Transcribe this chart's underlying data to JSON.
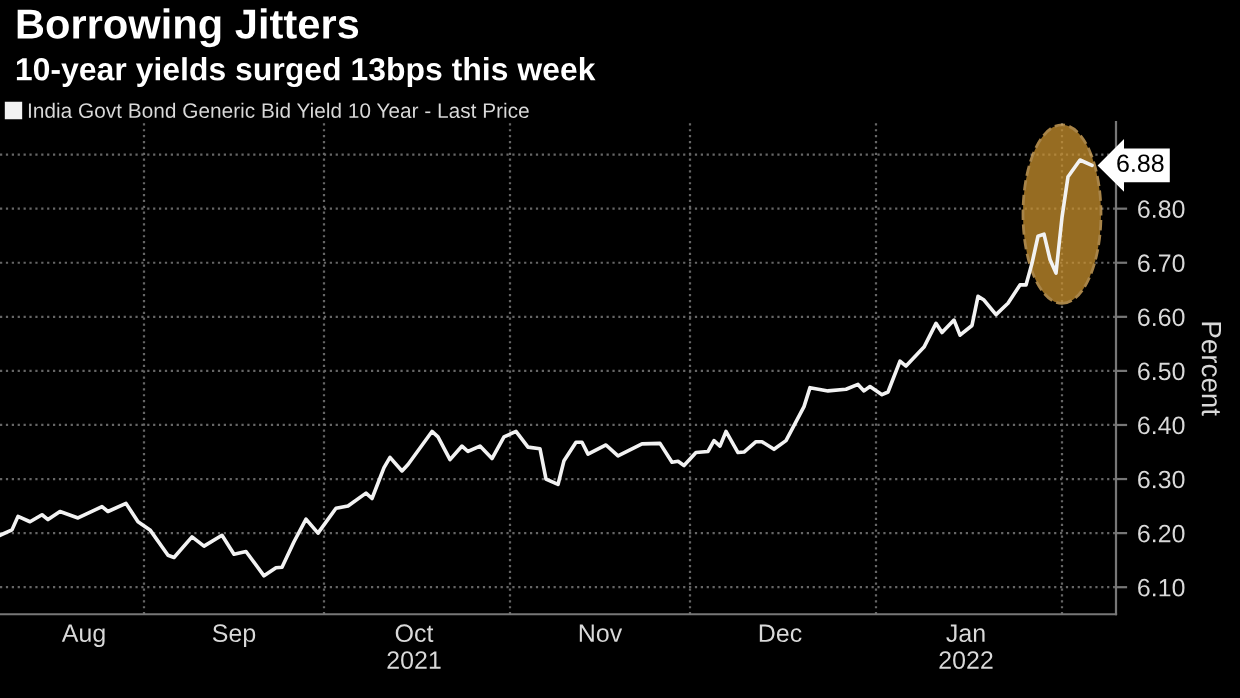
{
  "chart_data": {
    "type": "line",
    "title": "Borrowing Jitters",
    "subtitle": "10-year yields surged 13bps this week",
    "ylabel": "Percent",
    "legend": "top left",
    "grid": true,
    "marker": "none",
    "line_style": "solid",
    "x": [
      "2021-08-08",
      "2021-08-10",
      "2021-08-11",
      "2021-08-13",
      "2021-08-15",
      "2021-08-16",
      "2021-08-18",
      "2021-08-21",
      "2021-08-25",
      "2021-08-26",
      "2021-08-29",
      "2021-08-31",
      "2021-09-02",
      "2021-09-05",
      "2021-09-06",
      "2021-09-09",
      "2021-09-11",
      "2021-09-14",
      "2021-09-16",
      "2021-09-18",
      "2021-09-21",
      "2021-09-23",
      "2021-09-24",
      "2021-09-26",
      "2021-09-28",
      "2021-09-30",
      "2021-10-03",
      "2021-10-05",
      "2021-10-08",
      "2021-10-09",
      "2021-10-11",
      "2021-10-12",
      "2021-10-14",
      "2021-10-15",
      "2021-10-19",
      "2021-10-20",
      "2021-10-22",
      "2021-10-24",
      "2021-10-25",
      "2021-10-27",
      "2021-10-29",
      "2021-10-31",
      "2021-11-02",
      "2021-11-04",
      "2021-11-06",
      "2021-11-07",
      "2021-11-09",
      "2021-11-10",
      "2021-11-12",
      "2021-11-13",
      "2021-11-14",
      "2021-11-17",
      "2021-11-19",
      "2021-11-23",
      "2021-11-26",
      "2021-11-28",
      "2021-11-29",
      "2021-11-30",
      "2021-12-02",
      "2021-12-04",
      "2021-12-05",
      "2021-12-06",
      "2021-12-07",
      "2021-12-09",
      "2021-12-10",
      "2021-12-12",
      "2021-12-13",
      "2021-12-15",
      "2021-12-17",
      "2021-12-20",
      "2021-12-21",
      "2021-12-24",
      "2021-12-27",
      "2021-12-29",
      "2021-12-30",
      "2021-12-31",
      "2022-01-02",
      "2022-01-03",
      "2022-01-05",
      "2022-01-06",
      "2022-01-09",
      "2022-01-11",
      "2022-01-12",
      "2022-01-14",
      "2022-01-15",
      "2022-01-17",
      "2022-01-18",
      "2022-01-19",
      "2022-01-21",
      "2022-01-23",
      "2022-01-25",
      "2022-01-26",
      "2022-01-27",
      "2022-01-28",
      "2022-01-29",
      "2022-01-30",
      "2022-01-31",
      "2022-02-01",
      "2022-02-02",
      "2022-02-04",
      "2022-02-06"
    ],
    "series": [
      {
        "name": "India Govt Bond Generic Bid Yield 10 Year - Last Price",
        "color": "#f2f2f2",
        "values": [
          6.196,
          6.206,
          6.231,
          6.221,
          6.234,
          6.225,
          6.24,
          6.228,
          6.249,
          6.24,
          6.255,
          6.221,
          6.206,
          6.159,
          6.155,
          6.193,
          6.176,
          6.196,
          6.161,
          6.166,
          6.121,
          6.136,
          6.137,
          6.184,
          6.226,
          6.2,
          6.246,
          6.25,
          6.274,
          6.264,
          6.321,
          6.34,
          6.315,
          6.327,
          6.388,
          6.378,
          6.336,
          6.361,
          6.351,
          6.361,
          6.338,
          6.378,
          6.388,
          6.359,
          6.356,
          6.3,
          6.29,
          6.334,
          6.368,
          6.368,
          6.346,
          6.363,
          6.343,
          6.365,
          6.366,
          6.331,
          6.333,
          6.325,
          6.349,
          6.351,
          6.371,
          6.361,
          6.388,
          6.349,
          6.35,
          6.369,
          6.369,
          6.355,
          6.371,
          6.434,
          6.469,
          6.463,
          6.466,
          6.475,
          6.463,
          6.471,
          6.456,
          6.461,
          6.518,
          6.509,
          6.544,
          6.588,
          6.571,
          6.594,
          6.566,
          6.584,
          6.638,
          6.631,
          6.604,
          6.625,
          6.659,
          6.659,
          6.699,
          6.749,
          6.753,
          6.706,
          6.681,
          6.784,
          6.859,
          6.89,
          6.88
        ]
      }
    ],
    "xlim": [
      "2021-08-08",
      "2022-02-10"
    ],
    "xticks": [
      {
        "value": "2021-08-22",
        "label": "Aug"
      },
      {
        "value": "2021-09-01",
        "label": null
      },
      {
        "value": "2021-09-16",
        "label": "Sep"
      },
      {
        "value": "2021-10-01",
        "label": null
      },
      {
        "value": "2021-10-16",
        "label": "Oct\n2021"
      },
      {
        "value": "2021-11-01",
        "label": null
      },
      {
        "value": "2021-11-16",
        "label": "Nov"
      },
      {
        "value": "2021-12-01",
        "label": null
      },
      {
        "value": "2021-12-16",
        "label": "Dec"
      },
      {
        "value": "2022-01-01",
        "label": null
      },
      {
        "value": "2022-01-16",
        "label": "Jan\n2022"
      },
      {
        "value": "2022-02-01",
        "label": null
      }
    ],
    "ylim": [
      6.05,
      6.96
    ],
    "yticks": [
      {
        "value": 6.1,
        "label": "6.10"
      },
      {
        "value": 6.2,
        "label": "6.20"
      },
      {
        "value": 6.3,
        "label": "6.30"
      },
      {
        "value": 6.4,
        "label": "6.40"
      },
      {
        "value": 6.5,
        "label": "6.50"
      },
      {
        "value": 6.6,
        "label": "6.60"
      },
      {
        "value": 6.7,
        "label": "6.70"
      },
      {
        "value": 6.8,
        "label": "6.80"
      },
      {
        "value": 6.9,
        "label": null
      }
    ],
    "annotations": [
      {
        "text": "6.88",
        "x": "2022-02-06",
        "y": 6.88
      }
    ]
  }
}
